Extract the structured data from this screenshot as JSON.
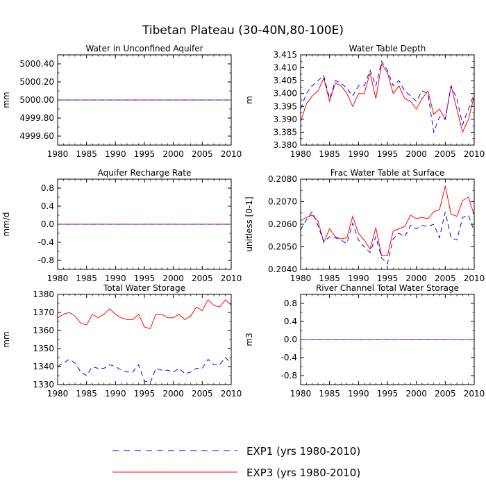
{
  "title": "Tibetan Plateau (30-40N,80-100E)",
  "colors": {
    "exp1": "#0000ff",
    "exp3": "#ff0000"
  },
  "legend": {
    "exp1": "EXP1 (yrs 1980-2010)",
    "exp3": "EXP3 (yrs 1980-2010)"
  },
  "chart_data": [
    {
      "type": "line",
      "title": "Water in Unconfined Aquifer",
      "ylabel": "mm",
      "xlabel": "",
      "ylim": [
        4999.5,
        5000.5
      ],
      "yticks": [
        4999.6,
        4999.8,
        5000.0,
        5000.2,
        5000.4
      ],
      "ytick_labels": [
        "4999.60",
        "4999.80",
        "5000.00",
        "5000.20",
        "5000.40"
      ],
      "xlim": [
        1980,
        2010
      ],
      "xticks": [
        1980,
        1985,
        1990,
        1995,
        2000,
        2005,
        2010
      ],
      "x_start": 1980,
      "series": [
        {
          "name": "EXP1 (yrs 1980-2010)",
          "values": [
            5000,
            5000,
            5000,
            5000,
            5000,
            5000,
            5000,
            5000,
            5000,
            5000,
            5000,
            5000,
            5000,
            5000,
            5000,
            5000,
            5000,
            5000,
            5000,
            5000,
            5000,
            5000,
            5000,
            5000,
            5000,
            5000,
            5000,
            5000,
            5000,
            5000,
            5000
          ]
        },
        {
          "name": "EXP3 (yrs 1980-2010)",
          "values": [
            5000,
            5000,
            5000,
            5000,
            5000,
            5000,
            5000,
            5000,
            5000,
            5000,
            5000,
            5000,
            5000,
            5000,
            5000,
            5000,
            5000,
            5000,
            5000,
            5000,
            5000,
            5000,
            5000,
            5000,
            5000,
            5000,
            5000,
            5000,
            5000,
            5000,
            5000
          ]
        }
      ]
    },
    {
      "type": "line",
      "title": "Water Table Depth",
      "ylabel": "m",
      "xlabel": "",
      "ylim": [
        3.38,
        3.415
      ],
      "yticks": [
        3.38,
        3.385,
        3.39,
        3.395,
        3.4,
        3.405,
        3.41,
        3.415
      ],
      "ytick_labels": [
        "3.380",
        "3.385",
        "3.390",
        "3.395",
        "3.400",
        "3.405",
        "3.410",
        "3.415"
      ],
      "xlim": [
        1980,
        2010
      ],
      "xticks": [
        1980,
        1985,
        1990,
        1995,
        2000,
        2005,
        2010
      ],
      "x_start": 1980,
      "series": [
        {
          "name": "EXP1 (yrs 1980-2010)",
          "values": [
            3.394,
            3.4,
            3.403,
            3.405,
            3.407,
            3.398,
            3.405,
            3.404,
            3.402,
            3.399,
            3.403,
            3.403,
            3.409,
            3.403,
            3.4125,
            3.409,
            3.403,
            3.405,
            3.401,
            3.399,
            3.397,
            3.401,
            3.4,
            3.385,
            3.391,
            3.39,
            3.403,
            3.398,
            3.388,
            3.394,
            3.4
          ]
        },
        {
          "name": "EXP3 (yrs 1980-2010)",
          "values": [
            3.389,
            3.396,
            3.399,
            3.401,
            3.406,
            3.397,
            3.404,
            3.403,
            3.4,
            3.395,
            3.4,
            3.4,
            3.408,
            3.398,
            3.4115,
            3.408,
            3.4,
            3.403,
            3.398,
            3.397,
            3.394,
            3.398,
            3.401,
            3.392,
            3.394,
            3.39,
            3.403,
            3.394,
            3.385,
            3.39,
            3.399
          ]
        }
      ]
    },
    {
      "type": "line",
      "title": "Aquifer Recharge Rate",
      "ylabel": "mm/d",
      "xlabel": "",
      "ylim": [
        -1.0,
        1.0
      ],
      "yticks": [
        -0.8,
        -0.4,
        0.0,
        0.4,
        0.8
      ],
      "ytick_labels": [
        "-0.8",
        "-0.4",
        "0.0",
        "0.4",
        "0.8"
      ],
      "xlim": [
        1980,
        2010
      ],
      "xticks": [
        1980,
        1985,
        1990,
        1995,
        2000,
        2005,
        2010
      ],
      "x_start": 1980,
      "series": [
        {
          "name": "EXP1 (yrs 1980-2010)",
          "values": [
            0,
            0,
            0,
            0,
            0,
            0,
            0,
            0,
            0,
            0,
            0,
            0,
            0,
            0,
            0,
            0,
            0,
            0,
            0,
            0,
            0,
            0,
            0,
            0,
            0,
            0,
            0,
            0,
            0,
            0,
            0
          ]
        },
        {
          "name": "EXP3 (yrs 1980-2010)",
          "values": [
            0,
            0,
            0,
            0,
            0,
            0,
            0,
            0,
            0,
            0,
            0,
            0,
            0,
            0,
            0,
            0,
            0,
            0,
            0,
            0,
            0,
            0,
            0,
            0,
            0,
            0,
            0,
            0,
            0,
            0,
            0
          ]
        }
      ]
    },
    {
      "type": "line",
      "title": "Frac Water Table at Surface",
      "ylabel": "unitless [0-1]",
      "xlabel": "",
      "ylim": [
        0.204,
        0.208
      ],
      "yticks": [
        0.204,
        0.205,
        0.206,
        0.207,
        0.208
      ],
      "ytick_labels": [
        "0.2040",
        "0.2050",
        "0.2060",
        "0.2070",
        "0.2080"
      ],
      "xlim": [
        1980,
        2010
      ],
      "xticks": [
        1980,
        1985,
        1990,
        1995,
        2000,
        2005,
        2010
      ],
      "x_start": 1980,
      "series": [
        {
          "name": "EXP1 (yrs 1980-2010)",
          "values": [
            0.20575,
            0.2062,
            0.20655,
            0.20595,
            0.2052,
            0.20545,
            0.2054,
            0.2053,
            0.20515,
            0.20605,
            0.2053,
            0.205,
            0.20475,
            0.20545,
            0.2045,
            0.20425,
            0.20535,
            0.2056,
            0.20545,
            0.20595,
            0.2058,
            0.20595,
            0.2059,
            0.206,
            0.2054,
            0.20655,
            0.2054,
            0.2053,
            0.2063,
            0.2064,
            0.2057
          ]
        },
        {
          "name": "EXP3 (yrs 1980-2010)",
          "values": [
            0.20615,
            0.2063,
            0.2064,
            0.20615,
            0.2052,
            0.2058,
            0.20545,
            0.20535,
            0.2054,
            0.20635,
            0.2056,
            0.2053,
            0.2049,
            0.20585,
            0.2046,
            0.2046,
            0.2057,
            0.2058,
            0.2059,
            0.2064,
            0.20625,
            0.2063,
            0.20625,
            0.20655,
            0.20665,
            0.2077,
            0.20645,
            0.20635,
            0.20705,
            0.2072,
            0.2064
          ]
        }
      ]
    },
    {
      "type": "line",
      "title": "Total Water Storage",
      "ylabel": "mm",
      "xlabel": "",
      "ylim": [
        1330,
        1380
      ],
      "yticks": [
        1330,
        1340,
        1350,
        1360,
        1370,
        1380
      ],
      "ytick_labels": [
        "1330",
        "1340",
        "1350",
        "1360",
        "1370",
        "1380"
      ],
      "xlim": [
        1980,
        2010
      ],
      "xticks": [
        1980,
        1985,
        1990,
        1995,
        2000,
        2005,
        2010
      ],
      "x_start": 1980,
      "series": [
        {
          "name": "EXP1 (yrs 1980-2010)",
          "values": [
            1340,
            1342,
            1344,
            1342,
            1337,
            1335,
            1340,
            1339,
            1339,
            1341,
            1340,
            1338,
            1337,
            1337,
            1341,
            1332,
            1331,
            1339,
            1338,
            1338,
            1337,
            1339,
            1336,
            1337,
            1339,
            1339,
            1344,
            1341,
            1341,
            1345,
            1342
          ]
        },
        {
          "name": "EXP3 (yrs 1980-2010)",
          "values": [
            1367,
            1369,
            1370,
            1368,
            1364,
            1363,
            1369,
            1367,
            1369,
            1372,
            1369,
            1367,
            1366,
            1366,
            1369,
            1362,
            1361,
            1369,
            1369,
            1367,
            1367,
            1369,
            1366,
            1368,
            1373,
            1371,
            1377,
            1374,
            1373,
            1377,
            1374
          ]
        }
      ]
    },
    {
      "type": "line",
      "title": "River Channel Total Water Storage",
      "ylabel": "m3",
      "xlabel": "",
      "ylim": [
        -1.0,
        1.0
      ],
      "yticks": [
        -0.8,
        -0.4,
        0.0,
        0.4,
        0.8
      ],
      "ytick_labels": [
        "-0.8",
        "-0.4",
        "0.0",
        "0.4",
        "0.8"
      ],
      "xlim": [
        1980,
        2010
      ],
      "xticks": [
        1980,
        1985,
        1990,
        1995,
        2000,
        2005,
        2010
      ],
      "x_start": 1980,
      "series": [
        {
          "name": "EXP1 (yrs 1980-2010)",
          "values": [
            0,
            0,
            0,
            0,
            0,
            0,
            0,
            0,
            0,
            0,
            0,
            0,
            0,
            0,
            0,
            0,
            0,
            0,
            0,
            0,
            0,
            0,
            0,
            0,
            0,
            0,
            0,
            0,
            0,
            0,
            0
          ]
        },
        {
          "name": "EXP3 (yrs 1980-2010)",
          "values": [
            0,
            0,
            0,
            0,
            0,
            0,
            0,
            0,
            0,
            0,
            0,
            0,
            0,
            0,
            0,
            0,
            0,
            0,
            0,
            0,
            0,
            0,
            0,
            0,
            0,
            0,
            0,
            0,
            0,
            0,
            0
          ]
        }
      ]
    }
  ]
}
